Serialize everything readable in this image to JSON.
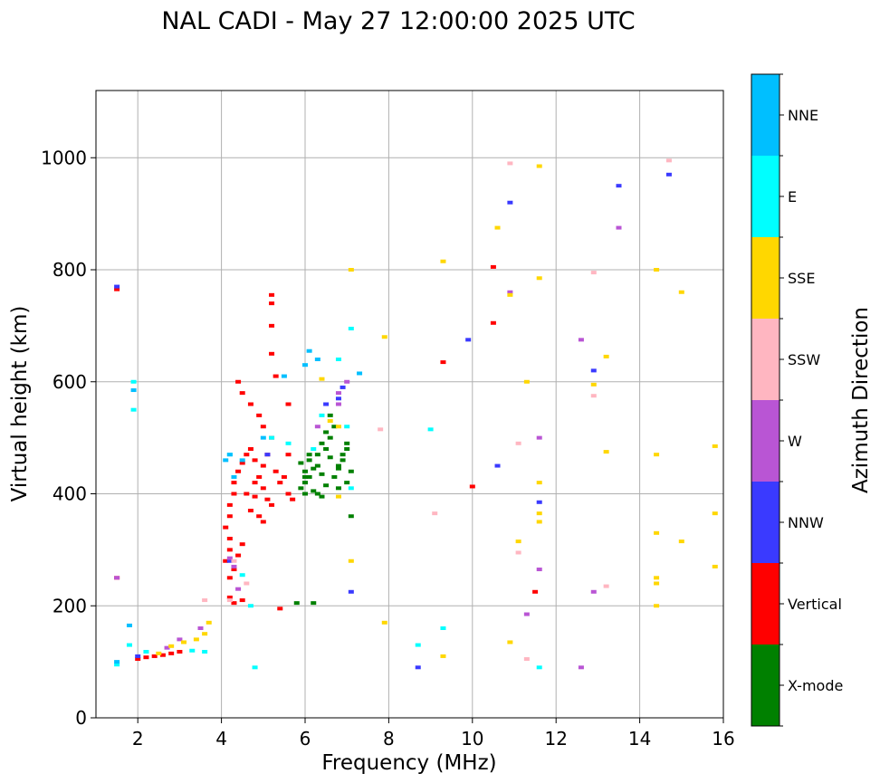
{
  "chart_data": {
    "type": "scatter",
    "title": "NAL CADI - May 27 12:00:00 2025 UTC",
    "xlabel": "Frequency (MHz)",
    "ylabel": "Virtual height (km)",
    "xlim": [
      1,
      16
    ],
    "ylim": [
      0,
      1120
    ],
    "xticks": [
      2,
      4,
      6,
      8,
      10,
      12,
      14,
      16
    ],
    "yticks": [
      0,
      200,
      400,
      600,
      800,
      1000
    ],
    "grid": true,
    "colorbar": {
      "label": "Azimuth Direction",
      "categories": [
        {
          "name": "X-mode",
          "color": "#008000"
        },
        {
          "name": "Vertical",
          "color": "#ff0000"
        },
        {
          "name": "NNW",
          "color": "#3a3aff"
        },
        {
          "name": "W",
          "color": "#b955d4"
        },
        {
          "name": "SSW",
          "color": "#ffb6c1"
        },
        {
          "name": "SSE",
          "color": "#ffd700"
        },
        {
          "name": "E",
          "color": "#00ffff"
        },
        {
          "name": "NNE",
          "color": "#00bfff"
        }
      ]
    },
    "series": [
      {
        "name": "X-mode",
        "points": [
          [
            5.9,
            410
          ],
          [
            6.0,
            420
          ],
          [
            6.1,
            430
          ],
          [
            6.0,
            440
          ],
          [
            6.2,
            445
          ],
          [
            6.3,
            450
          ],
          [
            6.1,
            460
          ],
          [
            6.3,
            470
          ],
          [
            6.5,
            480
          ],
          [
            6.4,
            490
          ],
          [
            6.6,
            500
          ],
          [
            6.5,
            510
          ],
          [
            6.7,
            520
          ],
          [
            6.3,
            400
          ],
          [
            6.2,
            405
          ],
          [
            6.5,
            415
          ],
          [
            6.7,
            430
          ],
          [
            6.8,
            445
          ],
          [
            6.9,
            460
          ],
          [
            6.9,
            470
          ],
          [
            7.0,
            480
          ],
          [
            7.0,
            490
          ],
          [
            6.1,
            470
          ],
          [
            5.9,
            455
          ],
          [
            6.0,
            400
          ],
          [
            6.4,
            395
          ],
          [
            6.8,
            410
          ],
          [
            7.0,
            420
          ],
          [
            7.1,
            440
          ],
          [
            6.6,
            540
          ],
          [
            6.2,
            205
          ],
          [
            5.8,
            205
          ],
          [
            7.1,
            360
          ],
          [
            6.0,
            430
          ],
          [
            6.4,
            435
          ],
          [
            6.8,
            450
          ],
          [
            6.6,
            465
          ]
        ]
      },
      {
        "name": "Vertical",
        "points": [
          [
            1.5,
            250
          ],
          [
            1.5,
            765
          ],
          [
            2.0,
            105
          ],
          [
            2.2,
            108
          ],
          [
            2.4,
            110
          ],
          [
            2.6,
            112
          ],
          [
            2.8,
            115
          ],
          [
            3.0,
            118
          ],
          [
            4.1,
            280
          ],
          [
            4.2,
            300
          ],
          [
            4.2,
            320
          ],
          [
            4.1,
            340
          ],
          [
            4.2,
            360
          ],
          [
            4.2,
            380
          ],
          [
            4.3,
            400
          ],
          [
            4.3,
            420
          ],
          [
            4.4,
            440
          ],
          [
            4.5,
            455
          ],
          [
            4.6,
            470
          ],
          [
            4.7,
            480
          ],
          [
            4.8,
            460
          ],
          [
            4.9,
            430
          ],
          [
            5.0,
            410
          ],
          [
            5.1,
            390
          ],
          [
            5.2,
            380
          ],
          [
            4.7,
            370
          ],
          [
            4.9,
            360
          ],
          [
            5.0,
            350
          ],
          [
            4.6,
            400
          ],
          [
            4.8,
            420
          ],
          [
            5.0,
            450
          ],
          [
            5.1,
            470
          ],
          [
            5.3,
            440
          ],
          [
            5.4,
            420
          ],
          [
            5.6,
            400
          ],
          [
            5.7,
            390
          ],
          [
            5.5,
            430
          ],
          [
            5.2,
            500
          ],
          [
            5.0,
            520
          ],
          [
            4.9,
            540
          ],
          [
            4.7,
            560
          ],
          [
            4.5,
            580
          ],
          [
            4.4,
            600
          ],
          [
            5.2,
            650
          ],
          [
            5.2,
            700
          ],
          [
            5.2,
            740
          ],
          [
            5.2,
            755
          ],
          [
            5.3,
            610
          ],
          [
            5.6,
            560
          ],
          [
            4.3,
            205
          ],
          [
            4.5,
            210
          ],
          [
            4.2,
            215
          ],
          [
            4.2,
            250
          ],
          [
            4.3,
            265
          ],
          [
            4.4,
            290
          ],
          [
            4.5,
            310
          ],
          [
            5.4,
            195
          ],
          [
            9.3,
            635
          ],
          [
            10.0,
            413
          ],
          [
            10.5,
            805
          ],
          [
            10.5,
            705
          ],
          [
            11.5,
            225
          ],
          [
            4.8,
            395
          ],
          [
            5.6,
            470
          ]
        ]
      },
      {
        "name": "NNW",
        "points": [
          [
            1.5,
            770
          ],
          [
            2.0,
            110
          ],
          [
            4.2,
            280
          ],
          [
            5.1,
            470
          ],
          [
            6.8,
            570
          ],
          [
            6.9,
            590
          ],
          [
            7.1,
            225
          ],
          [
            8.7,
            90
          ],
          [
            9.9,
            675
          ],
          [
            10.6,
            450
          ],
          [
            10.9,
            920
          ],
          [
            11.6,
            385
          ],
          [
            12.9,
            620
          ],
          [
            13.5,
            950
          ],
          [
            14.7,
            970
          ],
          [
            6.5,
            560
          ]
        ]
      },
      {
        "name": "W",
        "points": [
          [
            1.5,
            250
          ],
          [
            2.7,
            125
          ],
          [
            3.0,
            140
          ],
          [
            3.5,
            160
          ],
          [
            4.2,
            285
          ],
          [
            4.3,
            270
          ],
          [
            4.4,
            230
          ],
          [
            6.8,
            580
          ],
          [
            6.8,
            560
          ],
          [
            7.0,
            600
          ],
          [
            10.9,
            760
          ],
          [
            11.3,
            185
          ],
          [
            11.6,
            500
          ],
          [
            11.6,
            265
          ],
          [
            12.6,
            675
          ],
          [
            12.9,
            225
          ],
          [
            12.6,
            90
          ],
          [
            13.5,
            875
          ],
          [
            6.3,
            520
          ]
        ]
      },
      {
        "name": "SSW",
        "points": [
          [
            3.6,
            210
          ],
          [
            4.2,
            210
          ],
          [
            4.3,
            280
          ],
          [
            4.6,
            240
          ],
          [
            9.1,
            365
          ],
          [
            10.9,
            990
          ],
          [
            11.1,
            490
          ],
          [
            11.1,
            295
          ],
          [
            11.3,
            105
          ],
          [
            12.9,
            795
          ],
          [
            12.9,
            575
          ],
          [
            13.2,
            235
          ],
          [
            14.7,
            995
          ],
          [
            7.8,
            515
          ]
        ]
      },
      {
        "name": "SSE",
        "points": [
          [
            2.5,
            115
          ],
          [
            2.8,
            128
          ],
          [
            3.1,
            135
          ],
          [
            3.4,
            140
          ],
          [
            3.6,
            150
          ],
          [
            3.7,
            170
          ],
          [
            6.4,
            605
          ],
          [
            6.6,
            530
          ],
          [
            6.8,
            520
          ],
          [
            7.1,
            800
          ],
          [
            7.1,
            280
          ],
          [
            7.9,
            680
          ],
          [
            7.9,
            170
          ],
          [
            9.3,
            815
          ],
          [
            9.3,
            110
          ],
          [
            10.6,
            875
          ],
          [
            10.9,
            135
          ],
          [
            10.9,
            755
          ],
          [
            11.1,
            315
          ],
          [
            11.3,
            600
          ],
          [
            11.6,
            985
          ],
          [
            11.6,
            785
          ],
          [
            11.6,
            420
          ],
          [
            11.6,
            365
          ],
          [
            11.6,
            350
          ],
          [
            12.9,
            595
          ],
          [
            13.2,
            645
          ],
          [
            13.2,
            475
          ],
          [
            14.4,
            800
          ],
          [
            14.4,
            470
          ],
          [
            14.4,
            330
          ],
          [
            14.4,
            250
          ],
          [
            14.4,
            240
          ],
          [
            14.4,
            200
          ],
          [
            15.0,
            760
          ],
          [
            15.0,
            315
          ],
          [
            15.8,
            485
          ],
          [
            15.8,
            365
          ],
          [
            15.8,
            270
          ],
          [
            6.8,
            395
          ]
        ]
      },
      {
        "name": "E",
        "points": [
          [
            1.5,
            95
          ],
          [
            1.8,
            130
          ],
          [
            1.9,
            600
          ],
          [
            1.9,
            550
          ],
          [
            2.2,
            118
          ],
          [
            3.3,
            120
          ],
          [
            3.6,
            118
          ],
          [
            4.2,
            470
          ],
          [
            4.5,
            255
          ],
          [
            4.7,
            200
          ],
          [
            4.8,
            90
          ],
          [
            5.2,
            500
          ],
          [
            5.6,
            490
          ],
          [
            6.4,
            540
          ],
          [
            6.8,
            640
          ],
          [
            7.0,
            520
          ],
          [
            7.1,
            410
          ],
          [
            7.1,
            695
          ],
          [
            9.0,
            515
          ],
          [
            8.7,
            130
          ],
          [
            9.3,
            160
          ],
          [
            11.6,
            90
          ],
          [
            6.2,
            480
          ]
        ]
      },
      {
        "name": "NNE",
        "points": [
          [
            1.5,
            100
          ],
          [
            1.8,
            165
          ],
          [
            1.9,
            585
          ],
          [
            4.1,
            460
          ],
          [
            4.2,
            470
          ],
          [
            4.5,
            460
          ],
          [
            5.0,
            500
          ],
          [
            5.5,
            610
          ],
          [
            6.0,
            630
          ],
          [
            6.1,
            655
          ],
          [
            6.3,
            640
          ],
          [
            7.3,
            615
          ],
          [
            4.3,
            430
          ]
        ]
      }
    ]
  }
}
